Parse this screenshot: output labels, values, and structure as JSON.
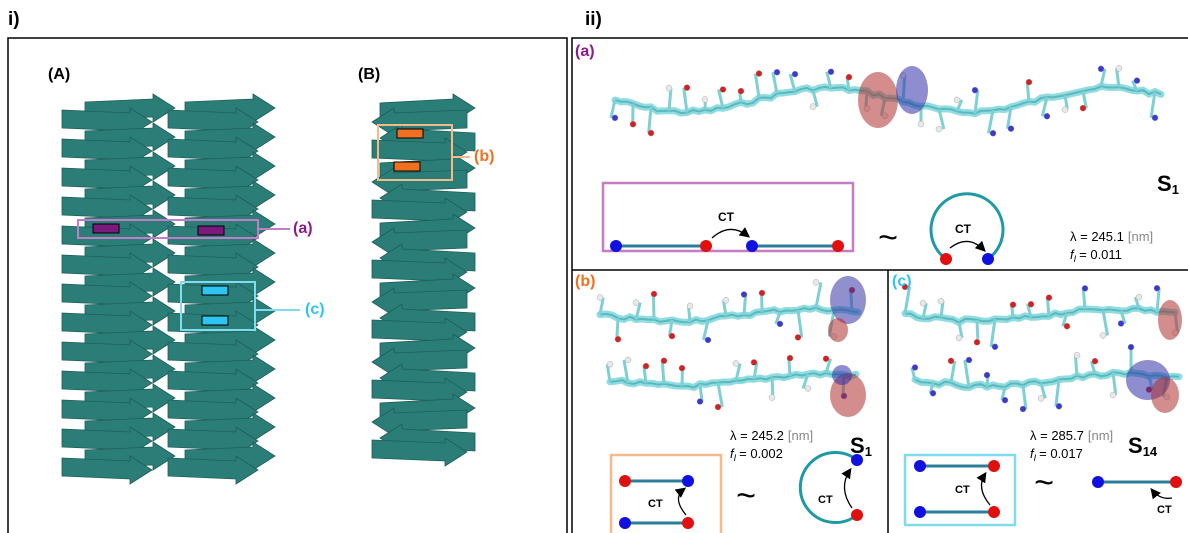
{
  "panel_i": {
    "label": "i)",
    "stack_A": "(A)",
    "stack_B": "(B)",
    "callout_a": "(a)",
    "callout_b": "(b)",
    "callout_c": "(c)"
  },
  "panel_ii": {
    "label": "ii)",
    "subpanels": [
      {
        "label": "(a)",
        "state": "S",
        "state_index": "1",
        "wavelength": "λ = 245.1",
        "unit": "[nm]",
        "osc_symbol": "f",
        "osc_sub": "I",
        "osc_value": "= 0.011",
        "ct_left": "CT",
        "ct_right": "CT",
        "tilde": "~"
      },
      {
        "label": "(b)",
        "state": "S",
        "state_index": "1",
        "wavelength": "λ = 245.2",
        "unit": "[nm]",
        "osc_symbol": "f",
        "osc_sub": "I",
        "osc_value": "= 0.002",
        "ct_left": "CT",
        "ct_right": "CT",
        "tilde": "~"
      },
      {
        "label": "(c)",
        "state": "S",
        "state_index": "14",
        "wavelength": "λ = 285.7",
        "unit": "[nm]",
        "osc_symbol": "f",
        "osc_sub": "I",
        "osc_value": "= 0.017",
        "ct_left": "CT",
        "ct_right": "CT",
        "tilde": "~"
      }
    ]
  }
}
